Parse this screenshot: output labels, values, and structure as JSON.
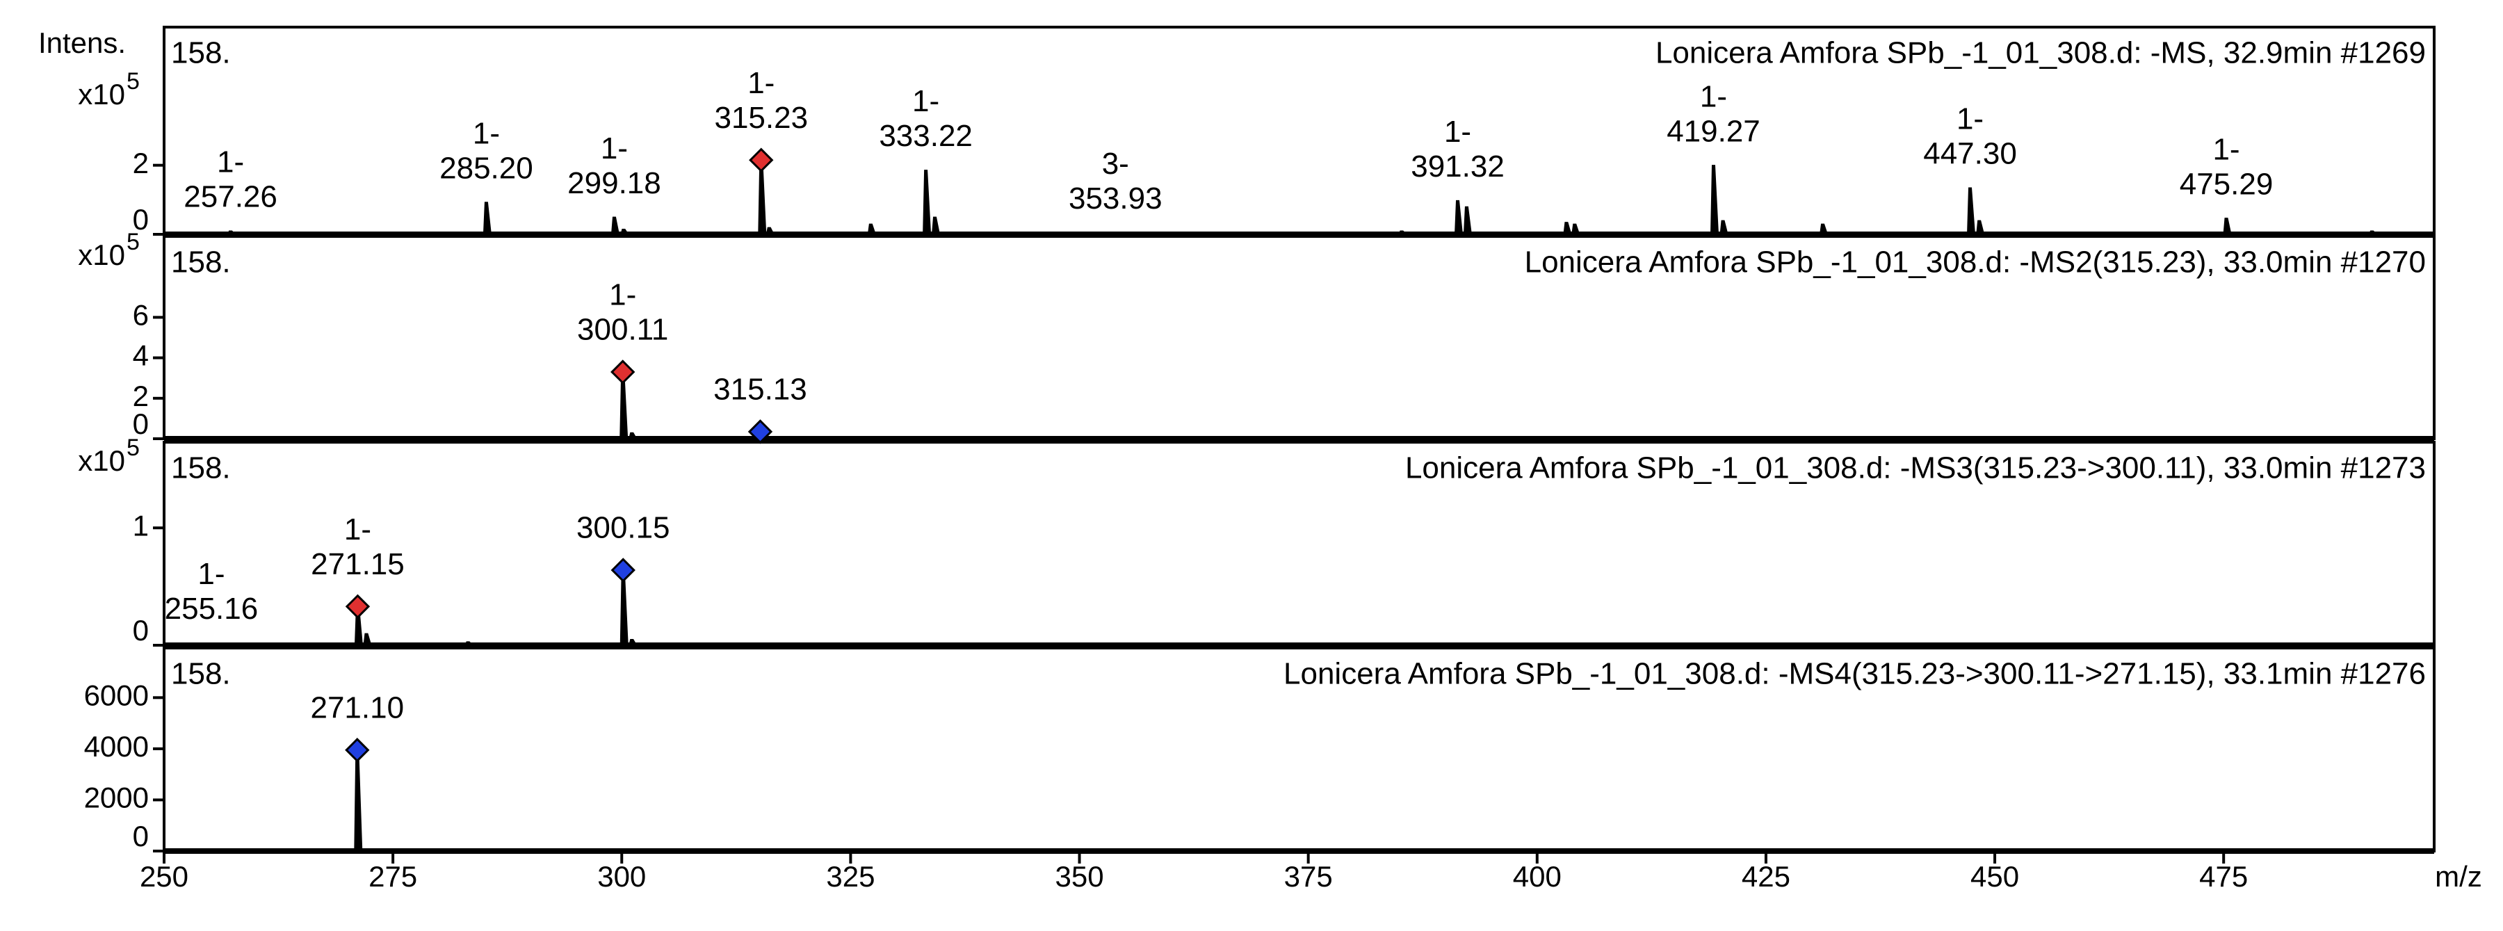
{
  "chart_data": [
    {
      "type": "stem",
      "title": "Lonicera Amfora SPb_-1_01_308.d: -MS, 32.9min #1269",
      "scan_label": "158.",
      "y_label": "Intens.",
      "y_unit": {
        "base": "x10",
        "exponent": "5"
      },
      "color": "#000000",
      "x": [
        257.26,
        285.2,
        299.18,
        300.2,
        315.23,
        316.1,
        327.2,
        333.22,
        334.2,
        353.93,
        385.2,
        391.32,
        392.3,
        403.2,
        404.1,
        419.27,
        420.3,
        431.2,
        447.3,
        448.3,
        463.2,
        475.29,
        491.2
      ],
      "values": [
        0.1,
        0.93,
        0.5,
        0.15,
        2.15,
        0.2,
        0.3,
        1.86,
        0.5,
        0.05,
        0.1,
        0.98,
        0.8,
        0.35,
        0.3,
        2.0,
        0.4,
        0.3,
        1.35,
        0.4,
        0.05,
        0.47,
        0.1
      ],
      "xlim": [
        250,
        498
      ],
      "ylim": [
        0,
        6
      ],
      "yticks": [
        0,
        2
      ],
      "annotations": [
        {
          "x": 257.26,
          "y": 0.1,
          "charge": "1-",
          "label": "257.26",
          "color": "#000000"
        },
        {
          "x": 285.2,
          "y": 0.93,
          "charge": "1-",
          "label": "285.20",
          "color": "#000000"
        },
        {
          "x": 299.18,
          "y": 0.5,
          "charge": "1-",
          "label": "299.18",
          "color": "#000000"
        },
        {
          "x": 315.23,
          "y": 2.15,
          "charge": "1-",
          "label": "315.23",
          "color": "#a01010",
          "marker": "#e03030"
        },
        {
          "x": 333.22,
          "y": 1.86,
          "charge": "1-",
          "label": "333.22",
          "color": "#000000"
        },
        {
          "x": 353.93,
          "y": 0.05,
          "charge": "3-",
          "label": "353.93",
          "color": "#000000"
        },
        {
          "x": 391.32,
          "y": 0.98,
          "charge": "1-",
          "label": "391.32",
          "color": "#000000"
        },
        {
          "x": 419.27,
          "y": 2.0,
          "charge": "1-",
          "label": "419.27",
          "color": "#000000"
        },
        {
          "x": 447.3,
          "y": 1.35,
          "charge": "1-",
          "label": "447.30",
          "color": "#000000"
        },
        {
          "x": 475.29,
          "y": 0.47,
          "charge": "1-",
          "label": "475.29",
          "color": "#000000"
        }
      ]
    },
    {
      "type": "stem",
      "title": "Lonicera Amfora SPb_-1_01_308.d: -MS2(315.23), 33.0min #1270",
      "scan_label": "158.",
      "y_unit": {
        "base": "x10",
        "exponent": "5"
      },
      "color": "#000000",
      "x": [
        300.11,
        301.1,
        315.13
      ],
      "values": [
        3.3,
        0.3,
        0.35
      ],
      "xlim": [
        250,
        498
      ],
      "ylim": [
        0,
        10
      ],
      "yticks": [
        0,
        2,
        4,
        6
      ],
      "annotations": [
        {
          "x": 300.11,
          "y": 3.3,
          "charge": "1-",
          "label": "300.11",
          "color": "#a01010",
          "marker": "#e03030"
        },
        {
          "x": 315.13,
          "y": 0.35,
          "label": "315.13",
          "color": "#000000",
          "marker": "#2040e0"
        }
      ]
    },
    {
      "type": "stem",
      "title": "Lonicera Amfora SPb_-1_01_308.d: -MS3(315.23->300.11), 33.0min #1273",
      "scan_label": "158.",
      "y_unit": {
        "base": "x10",
        "exponent": "5"
      },
      "color": "#000000",
      "x": [
        255.16,
        271.15,
        272.1,
        283.2,
        300.15,
        301.1
      ],
      "values": [
        0.02,
        0.33,
        0.1,
        0.03,
        0.64,
        0.05
      ],
      "xlim": [
        250,
        498
      ],
      "ylim": [
        0,
        1.73
      ],
      "yticks": [
        0,
        1
      ],
      "annotations": [
        {
          "x": 255.16,
          "y": 0.02,
          "charge": "1-",
          "label": "255.16",
          "color": "#000000"
        },
        {
          "x": 271.15,
          "y": 0.33,
          "charge": "1-",
          "label": "271.15",
          "color": "#a01010",
          "marker": "#e03030"
        },
        {
          "x": 300.15,
          "y": 0.64,
          "label": "300.15",
          "color": "#000000",
          "marker": "#2040e0"
        }
      ]
    },
    {
      "type": "stem",
      "title": "Lonicera Amfora SPb_-1_01_308.d: -MS4(315.23->300.11->271.15), 33.1min #1276",
      "scan_label": "158.",
      "color": "#000000",
      "x": [
        271.1
      ],
      "values": [
        3950
      ],
      "xlim": [
        250,
        498
      ],
      "ylim": [
        0,
        7940
      ],
      "yticks": [
        0,
        2000,
        4000,
        6000
      ],
      "xticks": [
        250,
        275,
        300,
        325,
        350,
        375,
        400,
        425,
        450,
        475
      ],
      "x_label": "m/z",
      "annotations": [
        {
          "x": 271.1,
          "y": 3950,
          "label": "271.10",
          "color": "#000000",
          "marker": "#2040e0"
        }
      ]
    }
  ]
}
